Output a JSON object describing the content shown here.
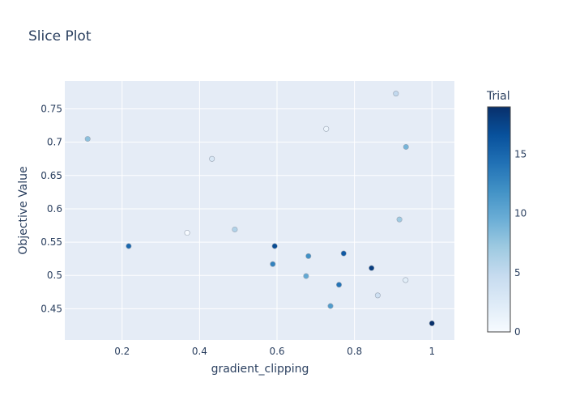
{
  "chart_data": {
    "type": "scatter",
    "title": "Slice Plot",
    "xlabel": "gradient_clipping",
    "ylabel": "Objective Value",
    "xlim": [
      0.052,
      1.058
    ],
    "ylim": [
      0.403,
      0.792
    ],
    "xticks": [
      0.2,
      0.4,
      0.6,
      0.8,
      1
    ],
    "yticks": [
      0.45,
      0.5,
      0.55,
      0.6,
      0.65,
      0.7,
      0.75
    ],
    "grid": true,
    "colorbar": {
      "title": "Trial",
      "min": 0,
      "max": 19,
      "ticks": [
        0,
        5,
        10,
        15
      ],
      "colorscale": [
        "#f7fbff",
        "#deebf7",
        "#c6dbef",
        "#9ecae1",
        "#6baed6",
        "#4292c6",
        "#2171b5",
        "#08519c",
        "#08306b"
      ]
    },
    "points": [
      {
        "x": 0.368,
        "y": 0.564,
        "trial": 0
      },
      {
        "x": 0.727,
        "y": 0.72,
        "trial": 1
      },
      {
        "x": 0.932,
        "y": 0.493,
        "trial": 2
      },
      {
        "x": 0.432,
        "y": 0.675,
        "trial": 3
      },
      {
        "x": 0.86,
        "y": 0.47,
        "trial": 4
      },
      {
        "x": 0.907,
        "y": 0.773,
        "trial": 5
      },
      {
        "x": 0.491,
        "y": 0.569,
        "trial": 6
      },
      {
        "x": 0.916,
        "y": 0.584,
        "trial": 7
      },
      {
        "x": 0.111,
        "y": 0.705,
        "trial": 8
      },
      {
        "x": 0.933,
        "y": 0.693,
        "trial": 9
      },
      {
        "x": 0.675,
        "y": 0.499,
        "trial": 10
      },
      {
        "x": 0.738,
        "y": 0.454,
        "trial": 11
      },
      {
        "x": 0.681,
        "y": 0.529,
        "trial": 12
      },
      {
        "x": 0.589,
        "y": 0.517,
        "trial": 13
      },
      {
        "x": 0.76,
        "y": 0.486,
        "trial": 14
      },
      {
        "x": 0.217,
        "y": 0.544,
        "trial": 15
      },
      {
        "x": 0.772,
        "y": 0.533,
        "trial": 16
      },
      {
        "x": 0.594,
        "y": 0.544,
        "trial": 17
      },
      {
        "x": 0.844,
        "y": 0.511,
        "trial": 18
      },
      {
        "x": 1.0,
        "y": 0.428,
        "trial": 19
      }
    ]
  }
}
